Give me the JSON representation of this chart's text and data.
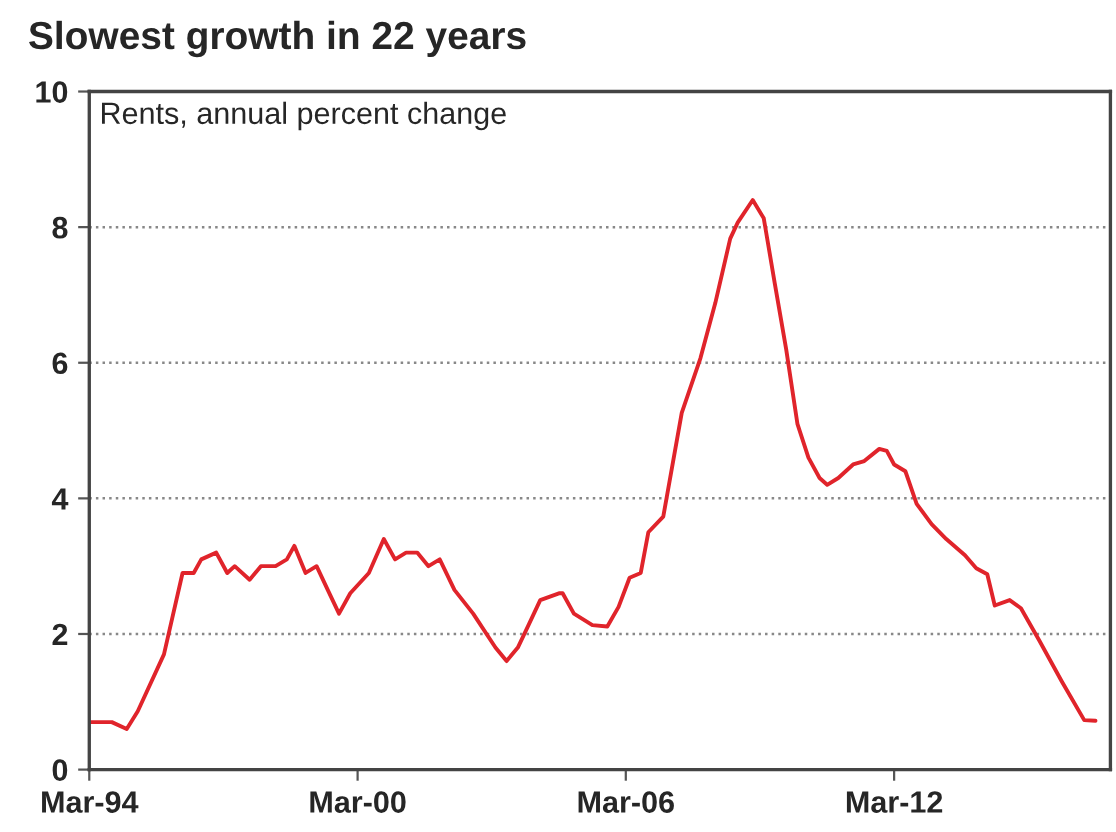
{
  "chart_data": {
    "type": "line",
    "title": "Slowest growth in 22 years",
    "annotations": [
      "Rents, annual percent change"
    ],
    "series": [
      {
        "color": "#e0242b",
        "x": [
          "1994-03",
          "1994-09",
          "1995-01",
          "1995-04",
          "1995-11",
          "1996-04",
          "1996-07",
          "1996-09",
          "1997-01",
          "1997-04",
          "1997-06",
          "1997-10",
          "1998-01",
          "1998-05",
          "1998-08",
          "1998-10",
          "1999-01",
          "1999-04",
          "1999-07",
          "1999-10",
          "2000-01",
          "2000-06",
          "2000-10",
          "2001-01",
          "2001-04",
          "2001-07",
          "2001-10",
          "2002-01",
          "2002-05",
          "2002-10",
          "2003-04",
          "2003-07",
          "2003-10",
          "2004-01",
          "2004-04",
          "2004-09",
          "2004-10",
          "2005-01",
          "2005-06",
          "2005-10",
          "2006-01",
          "2006-04",
          "2006-07",
          "2006-09",
          "2007-01",
          "2007-06",
          "2007-11",
          "2008-03",
          "2008-07",
          "2008-09",
          "2009-01",
          "2009-04",
          "2009-07",
          "2009-10",
          "2010-01",
          "2010-04",
          "2010-07",
          "2010-09",
          "2010-12",
          "2011-04",
          "2011-07",
          "2011-11",
          "2012-01",
          "2012-03",
          "2012-06",
          "2012-09",
          "2013-01",
          "2013-05",
          "2013-10",
          "2014-01",
          "2014-04",
          "2014-06",
          "2014-10",
          "2015-01",
          "2015-06",
          "2015-12",
          "2016-06",
          "2016-09"
        ],
        "values": [
          0.7,
          0.7,
          0.6,
          0.86,
          1.7,
          2.9,
          2.9,
          3.1,
          3.2,
          2.9,
          3.0,
          2.8,
          3.0,
          3.0,
          3.1,
          3.3,
          2.9,
          3.0,
          2.65,
          2.3,
          2.6,
          2.9,
          3.4,
          3.1,
          3.2,
          3.2,
          3.0,
          3.1,
          2.65,
          2.3,
          1.8,
          1.6,
          1.8,
          2.15,
          2.5,
          2.6,
          2.6,
          2.3,
          2.13,
          2.11,
          2.4,
          2.83,
          2.9,
          3.5,
          3.73,
          5.26,
          6.07,
          6.88,
          7.83,
          8.07,
          8.4,
          8.13,
          7.16,
          6.2,
          5.1,
          4.6,
          4.3,
          4.2,
          4.3,
          4.5,
          4.55,
          4.73,
          4.7,
          4.5,
          4.4,
          3.92,
          3.62,
          3.4,
          3.16,
          2.97,
          2.88,
          2.42,
          2.5,
          2.38,
          1.9,
          1.3,
          0.73,
          0.72
        ]
      }
    ],
    "xlim": [
      "1994-03",
      "2017-01"
    ],
    "xticks": [
      {
        "value": "1994-03",
        "label": "Mar-94"
      },
      {
        "value": "2000-03",
        "label": "Mar-00"
      },
      {
        "value": "2006-03",
        "label": "Mar-06"
      },
      {
        "value": "2012-03",
        "label": "Mar-12"
      }
    ],
    "ylim": [
      0,
      10
    ],
    "yticks": [
      0,
      2,
      4,
      6,
      8,
      10
    ],
    "grid": "y",
    "marker": "none",
    "line_style": "solid"
  }
}
